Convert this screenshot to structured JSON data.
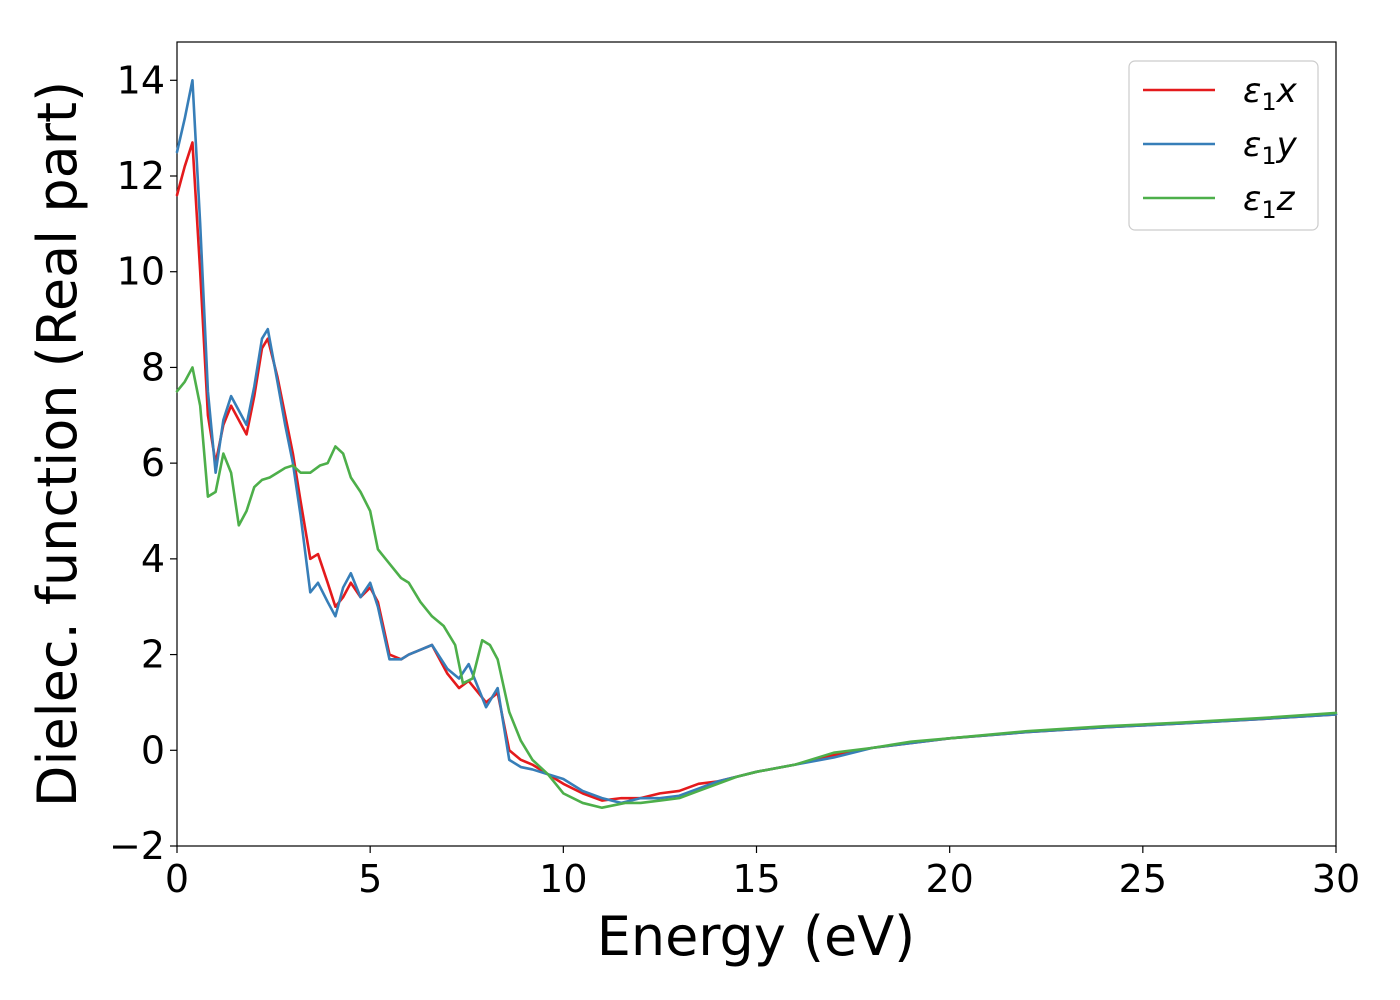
{
  "chart_data": {
    "type": "line",
    "title": "",
    "xlabel": "Energy (eV)",
    "ylabel": "Dielec. function (Real part)",
    "xlim": [
      0,
      30
    ],
    "ylim": [
      -2,
      14.8
    ],
    "xticks": [
      0,
      5,
      10,
      15,
      20,
      25,
      30
    ],
    "xtick_labels": [
      "0",
      "5",
      "10",
      "15",
      "20",
      "25",
      "30"
    ],
    "yticks": [
      -2,
      0,
      2,
      4,
      6,
      8,
      10,
      12,
      14
    ],
    "ytick_labels": [
      "−2",
      "0",
      "2",
      "4",
      "6",
      "8",
      "10",
      "12",
      "14"
    ],
    "grid": false,
    "legend_position": "top-right",
    "series": [
      {
        "name": "ε₁x",
        "legend_base": "ε",
        "legend_sub": "1",
        "legend_var": "x",
        "color": "#e41a1c",
        "x": [
          0,
          0.2,
          0.4,
          0.6,
          0.8,
          1.0,
          1.2,
          1.4,
          1.6,
          1.8,
          2.0,
          2.2,
          2.35,
          2.6,
          2.8,
          3.0,
          3.2,
          3.45,
          3.65,
          3.9,
          4.1,
          4.3,
          4.5,
          4.75,
          5.0,
          5.2,
          5.5,
          5.8,
          6.0,
          6.3,
          6.6,
          7.0,
          7.3,
          7.55,
          7.8,
          8.0,
          8.3,
          8.6,
          8.9,
          9.2,
          9.6,
          10.0,
          10.5,
          11.0,
          11.5,
          12.0,
          12.5,
          13.0,
          13.5,
          14.0,
          14.5,
          15,
          16,
          17,
          18,
          19,
          20,
          22,
          24,
          26,
          28,
          30
        ],
        "y": [
          11.6,
          12.2,
          12.7,
          10.0,
          7.0,
          6.0,
          6.8,
          7.2,
          6.9,
          6.6,
          7.4,
          8.4,
          8.6,
          7.8,
          7.0,
          6.2,
          5.2,
          4.0,
          4.1,
          3.5,
          3.0,
          3.2,
          3.5,
          3.2,
          3.4,
          3.1,
          2.0,
          1.9,
          2.0,
          2.1,
          2.2,
          1.6,
          1.3,
          1.45,
          1.2,
          1.0,
          1.2,
          0.0,
          -0.2,
          -0.3,
          -0.5,
          -0.7,
          -0.9,
          -1.05,
          -1.0,
          -1.0,
          -0.9,
          -0.85,
          -0.7,
          -0.65,
          -0.55,
          -0.45,
          -0.3,
          -0.1,
          0.05,
          0.15,
          0.25,
          0.38,
          0.48,
          0.56,
          0.65,
          0.75
        ]
      },
      {
        "name": "ε₁y",
        "legend_base": "ε",
        "legend_sub": "1",
        "legend_var": "y",
        "color": "#377eb8",
        "x": [
          0,
          0.2,
          0.4,
          0.6,
          0.8,
          1.0,
          1.2,
          1.4,
          1.6,
          1.8,
          2.0,
          2.2,
          2.35,
          2.6,
          2.8,
          3.0,
          3.2,
          3.45,
          3.65,
          3.9,
          4.1,
          4.3,
          4.5,
          4.75,
          5.0,
          5.2,
          5.5,
          5.8,
          6.0,
          6.3,
          6.6,
          7.0,
          7.3,
          7.55,
          7.8,
          8.0,
          8.3,
          8.6,
          8.9,
          9.2,
          9.6,
          10.0,
          10.5,
          11.0,
          11.5,
          12.0,
          12.5,
          13.0,
          13.5,
          14.0,
          14.5,
          15,
          16,
          17,
          18,
          19,
          20,
          22,
          24,
          26,
          28,
          30
        ],
        "y": [
          12.5,
          13.2,
          14.0,
          11.0,
          7.5,
          5.8,
          6.9,
          7.4,
          7.1,
          6.8,
          7.6,
          8.6,
          8.8,
          7.7,
          6.8,
          6.0,
          4.9,
          3.3,
          3.5,
          3.1,
          2.8,
          3.4,
          3.7,
          3.2,
          3.5,
          3.0,
          1.9,
          1.9,
          2.0,
          2.1,
          2.2,
          1.7,
          1.5,
          1.8,
          1.3,
          0.9,
          1.3,
          -0.2,
          -0.35,
          -0.4,
          -0.5,
          -0.6,
          -0.85,
          -1.0,
          -1.1,
          -1.0,
          -1.0,
          -0.95,
          -0.8,
          -0.65,
          -0.55,
          -0.45,
          -0.3,
          -0.15,
          0.05,
          0.15,
          0.25,
          0.38,
          0.48,
          0.56,
          0.65,
          0.75
        ]
      },
      {
        "name": "ε₁z",
        "legend_base": "ε",
        "legend_sub": "1",
        "legend_var": "z",
        "color": "#4daf4a",
        "x": [
          0,
          0.2,
          0.4,
          0.6,
          0.8,
          1.0,
          1.2,
          1.4,
          1.6,
          1.8,
          2.0,
          2.2,
          2.4,
          2.6,
          2.8,
          3.0,
          3.2,
          3.45,
          3.7,
          3.9,
          4.1,
          4.3,
          4.5,
          4.75,
          5.0,
          5.2,
          5.5,
          5.8,
          6.0,
          6.3,
          6.6,
          6.9,
          7.2,
          7.4,
          7.65,
          7.9,
          8.1,
          8.3,
          8.6,
          8.9,
          9.2,
          9.6,
          10.0,
          10.5,
          11.0,
          11.3,
          11.6,
          12.0,
          12.5,
          13.0,
          13.5,
          14.0,
          14.5,
          15,
          16,
          17,
          18,
          19,
          20,
          22,
          24,
          26,
          28,
          30
        ],
        "y": [
          7.5,
          7.7,
          8.0,
          7.2,
          5.3,
          5.4,
          6.2,
          5.8,
          4.7,
          5.0,
          5.5,
          5.65,
          5.7,
          5.8,
          5.9,
          5.95,
          5.8,
          5.8,
          5.95,
          6.0,
          6.35,
          6.2,
          5.7,
          5.4,
          5.0,
          4.2,
          3.9,
          3.6,
          3.5,
          3.1,
          2.8,
          2.6,
          2.2,
          1.4,
          1.5,
          2.3,
          2.2,
          1.9,
          0.8,
          0.2,
          -0.2,
          -0.5,
          -0.9,
          -1.1,
          -1.2,
          -1.15,
          -1.1,
          -1.1,
          -1.05,
          -1.0,
          -0.85,
          -0.7,
          -0.55,
          -0.45,
          -0.3,
          -0.05,
          0.05,
          0.18,
          0.25,
          0.4,
          0.5,
          0.58,
          0.67,
          0.78
        ]
      }
    ]
  }
}
